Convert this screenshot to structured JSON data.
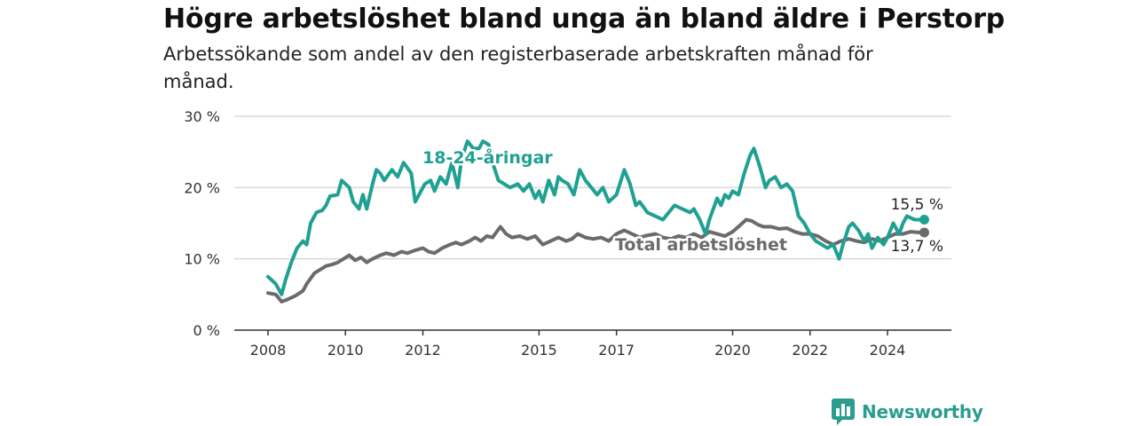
{
  "title": "Högre arbetslöshet bland unga än bland äldre i Perstorp",
  "subtitle": "Arbetssökande som andel av den registerbaserade arbetskraften månad för månad.",
  "brand": "Newsworthy",
  "colors": {
    "youth": "#1fa192",
    "total": "#6b6b6e",
    "grid": "#d9d9d9",
    "axis": "#333333",
    "brand": "#2a9d8f"
  },
  "chart_data": {
    "type": "line",
    "grid": true,
    "ylim": [
      0,
      30
    ],
    "y_ticks": [
      0,
      10,
      20,
      30
    ],
    "y_tick_labels": [
      "0 %",
      "10 %",
      "20 %",
      "30 %"
    ],
    "x_ticks": [
      2008,
      2010,
      2012,
      2015,
      2017,
      2020,
      2022,
      2024
    ],
    "x_tick_labels": [
      "2008",
      "2010",
      "2012",
      "2015",
      "2017",
      "2020",
      "2022",
      "2024"
    ],
    "xlim": [
      2007.5,
      2025.3
    ],
    "series": [
      {
        "name": "18-24-åringar",
        "color": "youth",
        "end_label": "15,5 %",
        "x": [
          2008.0,
          2008.2,
          2008.35,
          2008.45,
          2008.6,
          2008.75,
          2008.9,
          2009.0,
          2009.1,
          2009.25,
          2009.4,
          2009.5,
          2009.6,
          2009.8,
          2009.9,
          2010.0,
          2010.1,
          2010.2,
          2010.35,
          2010.45,
          2010.55,
          2010.7,
          2010.8,
          2010.9,
          2011.0,
          2011.2,
          2011.35,
          2011.5,
          2011.7,
          2011.8,
          2011.95,
          2012.05,
          2012.2,
          2012.3,
          2012.45,
          2012.6,
          2012.75,
          2012.9,
          2013.0,
          2013.15,
          2013.3,
          2013.45,
          2013.55,
          2013.7,
          2013.8,
          2013.95,
          2014.1,
          2014.25,
          2014.45,
          2014.6,
          2014.75,
          2014.9,
          2015.0,
          2015.1,
          2015.25,
          2015.4,
          2015.5,
          2015.6,
          2015.75,
          2015.9,
          2016.05,
          2016.2,
          2016.35,
          2016.5,
          2016.65,
          2016.8,
          2016.9,
          2017.0,
          2017.2,
          2017.35,
          2017.5,
          2017.6,
          2017.8,
          2018.0,
          2018.2,
          2018.35,
          2018.5,
          2018.7,
          2018.9,
          2019.0,
          2019.15,
          2019.3,
          2019.4,
          2019.5,
          2019.6,
          2019.7,
          2019.8,
          2019.9,
          2020.0,
          2020.15,
          2020.3,
          2020.45,
          2020.55,
          2020.7,
          2020.85,
          2020.95,
          2021.1,
          2021.25,
          2021.4,
          2021.55,
          2021.7,
          2021.85,
          2022.0,
          2022.15,
          2022.3,
          2022.45,
          2022.6,
          2022.75,
          2022.85,
          2023.0,
          2023.1,
          2023.25,
          2023.4,
          2023.5,
          2023.6,
          2023.75,
          2023.9,
          2024.0,
          2024.15,
          2024.3,
          2024.4,
          2024.5,
          2024.7,
          2024.85,
          2024.95
        ],
        "y": [
          7.5,
          6.5,
          5.0,
          7.0,
          9.5,
          11.5,
          12.5,
          12.0,
          15.0,
          16.5,
          16.8,
          17.5,
          18.8,
          19.0,
          21.0,
          20.5,
          20.0,
          18.0,
          17.0,
          19.0,
          17.0,
          20.5,
          22.5,
          22.0,
          21.0,
          22.5,
          21.5,
          23.5,
          22.0,
          18.0,
          19.5,
          20.5,
          21.0,
          19.5,
          21.5,
          20.5,
          23.5,
          20.0,
          24.0,
          26.5,
          25.5,
          25.5,
          26.5,
          26.0,
          23.5,
          21.0,
          20.5,
          20.0,
          20.5,
          19.5,
          20.5,
          18.5,
          19.5,
          18.0,
          21.0,
          19.0,
          21.5,
          21.0,
          20.5,
          19.0,
          22.5,
          21.0,
          20.0,
          19.0,
          20.0,
          18.0,
          18.5,
          19.0,
          22.5,
          20.5,
          17.5,
          18.0,
          16.5,
          16.0,
          15.5,
          16.5,
          17.5,
          17.0,
          16.5,
          17.0,
          15.5,
          13.5,
          15.5,
          17.0,
          18.5,
          17.5,
          19.0,
          18.5,
          19.5,
          19.0,
          22.0,
          24.5,
          25.5,
          23.0,
          20.0,
          21.0,
          21.5,
          20.0,
          20.5,
          19.5,
          16.0,
          15.0,
          13.5,
          12.5,
          12.0,
          11.5,
          12.0,
          10.0,
          12.0,
          14.5,
          15.0,
          14.0,
          12.5,
          13.5,
          11.5,
          13.0,
          12.0,
          13.0,
          15.0,
          13.5,
          15.0,
          16.0,
          15.5,
          15.5,
          15.5
        ]
      },
      {
        "name": "Total arbetslöshet",
        "color": "total",
        "end_label": "13,7 %",
        "x": [
          2008.0,
          2008.2,
          2008.35,
          2008.5,
          2008.7,
          2008.9,
          2009.0,
          2009.2,
          2009.35,
          2009.5,
          2009.65,
          2009.8,
          2009.95,
          2010.1,
          2010.25,
          2010.4,
          2010.55,
          2010.7,
          2010.9,
          2011.05,
          2011.25,
          2011.45,
          2011.6,
          2011.8,
          2012.0,
          2012.15,
          2012.3,
          2012.5,
          2012.7,
          2012.85,
          2013.0,
          2013.2,
          2013.35,
          2013.5,
          2013.65,
          2013.8,
          2014.0,
          2014.15,
          2014.3,
          2014.5,
          2014.7,
          2014.9,
          2015.1,
          2015.3,
          2015.5,
          2015.7,
          2015.85,
          2016.0,
          2016.2,
          2016.4,
          2016.6,
          2016.8,
          2017.0,
          2017.2,
          2017.4,
          2017.6,
          2017.8,
          2018.0,
          2018.2,
          2018.4,
          2018.6,
          2018.8,
          2019.0,
          2019.2,
          2019.4,
          2019.6,
          2019.8,
          2020.0,
          2020.15,
          2020.35,
          2020.5,
          2020.65,
          2020.8,
          2021.0,
          2021.2,
          2021.4,
          2021.6,
          2021.8,
          2022.0,
          2022.2,
          2022.4,
          2022.6,
          2022.8,
          2023.0,
          2023.2,
          2023.4,
          2023.6,
          2023.8,
          2024.0,
          2024.2,
          2024.4,
          2024.6,
          2024.8,
          2024.95
        ],
        "y": [
          5.2,
          5.0,
          4.0,
          4.3,
          4.8,
          5.5,
          6.5,
          8.0,
          8.5,
          9.0,
          9.2,
          9.5,
          10.0,
          10.5,
          9.8,
          10.2,
          9.5,
          10.0,
          10.5,
          10.8,
          10.5,
          11.0,
          10.8,
          11.2,
          11.5,
          11.0,
          10.8,
          11.5,
          12.0,
          12.3,
          12.0,
          12.5,
          13.0,
          12.5,
          13.2,
          13.0,
          14.5,
          13.5,
          13.0,
          13.2,
          12.8,
          13.2,
          12.0,
          12.5,
          13.0,
          12.5,
          12.8,
          13.5,
          13.0,
          12.8,
          13.0,
          12.5,
          13.5,
          14.0,
          13.5,
          13.0,
          13.3,
          13.5,
          13.0,
          12.8,
          13.2,
          13.0,
          13.5,
          13.0,
          13.8,
          13.5,
          13.2,
          13.8,
          14.5,
          15.5,
          15.3,
          14.8,
          14.5,
          14.5,
          14.2,
          14.3,
          13.8,
          13.5,
          13.5,
          13.2,
          12.5,
          12.0,
          12.5,
          12.8,
          12.5,
          12.3,
          12.8,
          12.5,
          13.0,
          13.5,
          13.5,
          13.8,
          13.7,
          13.7
        ]
      }
    ],
    "annotations": [
      {
        "text": "18-24-åringar",
        "series": "18-24-åringar"
      },
      {
        "text": "Total arbetslöshet",
        "series": "Total arbetslöshet"
      }
    ]
  }
}
